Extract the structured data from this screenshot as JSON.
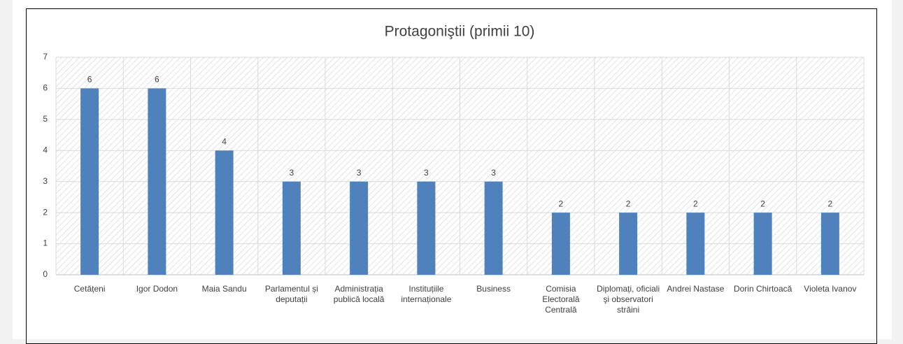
{
  "chart_data": {
    "type": "bar",
    "title": "Protagoniştii (primii 10)",
    "categories": [
      "Cetățeni",
      "Igor Dodon",
      "Maia Sandu",
      "Parlamentul și deputații",
      "Administrația publică locală",
      "Instituțiile internaționale",
      "Business",
      "Comisia Electorală Centrală",
      "Diplomați, oficiali şi observatori străini",
      "Andrei Nastase",
      "Dorin Chirtoacă",
      "Violeta Ivanov"
    ],
    "values": [
      6,
      6,
      4,
      3,
      3,
      3,
      3,
      2,
      2,
      2,
      2,
      2
    ],
    "color": "#4f81bd",
    "ylim": [
      0,
      7
    ],
    "yticks": [
      0,
      1,
      2,
      3,
      4,
      5,
      6,
      7
    ],
    "grid": true
  }
}
